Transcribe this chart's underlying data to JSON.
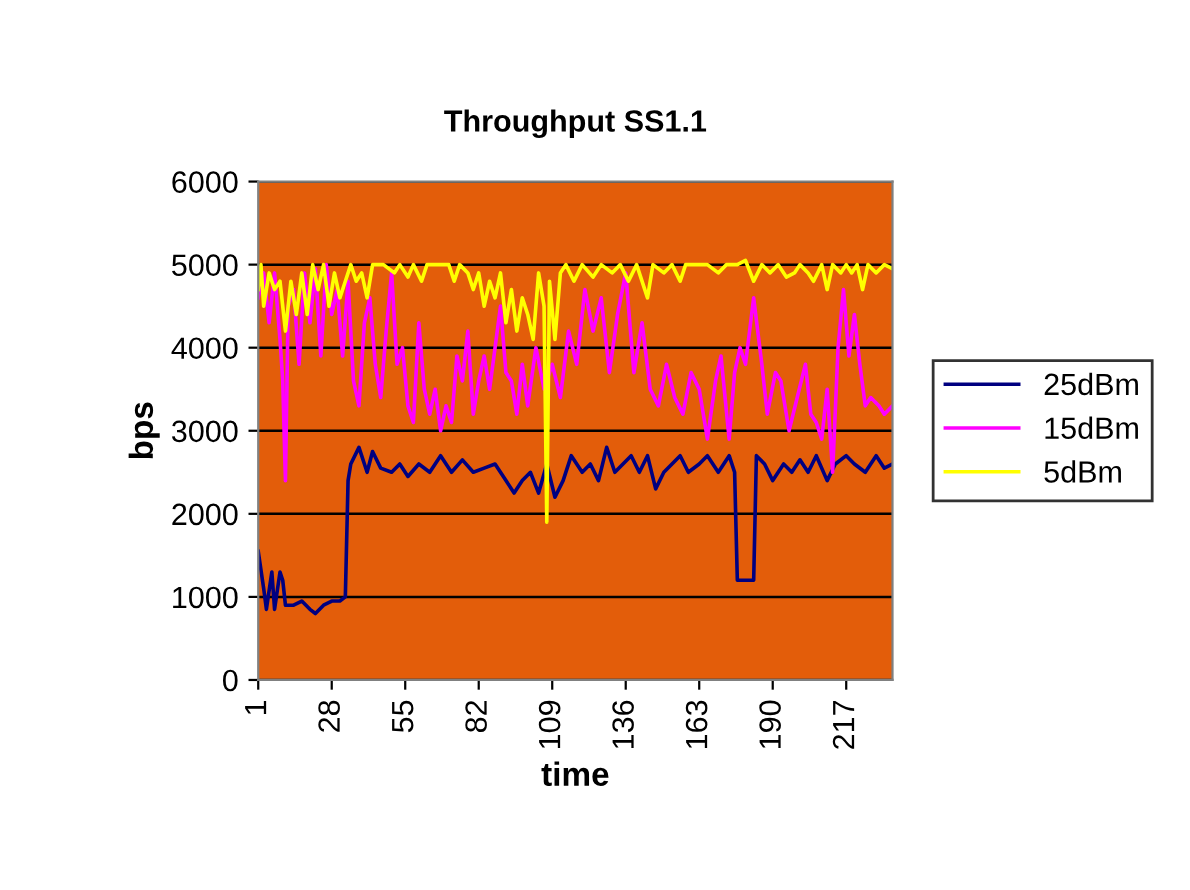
{
  "chart_data": {
    "type": "line",
    "title": "Throughput SS1.1",
    "xlabel": "time",
    "ylabel": "bps",
    "xlim": [
      1,
      234
    ],
    "xticks": [
      1,
      28,
      55,
      82,
      109,
      136,
      163,
      190,
      217
    ],
    "ylim": [
      0,
      6000
    ],
    "yticks": [
      0,
      1000,
      2000,
      3000,
      4000,
      5000,
      6000
    ],
    "grid": "y",
    "legend": "right",
    "marker": "none",
    "line_style": "solid",
    "series": [
      {
        "name": "25dBm",
        "color": "#000080",
        "x": [
          1,
          3,
          4,
          6,
          7,
          9,
          10,
          11,
          14,
          17,
          20,
          22,
          25,
          28,
          31,
          33,
          34,
          35,
          38,
          41,
          43,
          46,
          50,
          53,
          56,
          60,
          64,
          68,
          72,
          76,
          80,
          84,
          88,
          92,
          95,
          98,
          101,
          104,
          107,
          110,
          113,
          116,
          120,
          123,
          126,
          129,
          132,
          135,
          138,
          141,
          144,
          147,
          150,
          153,
          156,
          159,
          163,
          166,
          170,
          174,
          176,
          177,
          183,
          184,
          187,
          190,
          194,
          197,
          200,
          203,
          206,
          210,
          213,
          217,
          220,
          224,
          228,
          231,
          234
        ],
        "values": [
          1550,
          1100,
          850,
          1300,
          850,
          1300,
          1200,
          900,
          900,
          950,
          850,
          800,
          900,
          950,
          950,
          1000,
          2400,
          2600,
          2800,
          2500,
          2750,
          2550,
          2500,
          2600,
          2450,
          2600,
          2500,
          2700,
          2500,
          2650,
          2500,
          2550,
          2600,
          2400,
          2250,
          2400,
          2500,
          2250,
          2600,
          2200,
          2400,
          2700,
          2500,
          2600,
          2400,
          2800,
          2500,
          2600,
          2700,
          2500,
          2700,
          2300,
          2500,
          2600,
          2700,
          2500,
          2600,
          2700,
          2500,
          2700,
          2500,
          1200,
          1200,
          2700,
          2600,
          2400,
          2600,
          2500,
          2650,
          2500,
          2700,
          2400,
          2600,
          2700,
          2600,
          2500,
          2700,
          2550,
          2600
        ]
      },
      {
        "name": "15dBm",
        "color": "#ff00ff",
        "x": [
          1,
          3,
          5,
          7,
          9,
          10,
          11,
          12,
          14,
          16,
          18,
          20,
          22,
          24,
          26,
          28,
          30,
          32,
          34,
          36,
          38,
          40,
          42,
          44,
          46,
          48,
          50,
          52,
          54,
          56,
          58,
          60,
          62,
          64,
          66,
          68,
          70,
          72,
          74,
          76,
          78,
          80,
          82,
          84,
          86,
          88,
          90,
          92,
          94,
          96,
          98,
          100,
          103,
          106,
          109,
          112,
          115,
          118,
          121,
          124,
          127,
          130,
          133,
          136,
          139,
          142,
          145,
          148,
          151,
          154,
          157,
          160,
          163,
          166,
          169,
          171,
          174,
          176,
          178,
          180,
          183,
          186,
          188,
          191,
          193,
          196,
          199,
          202,
          204,
          206,
          208,
          210,
          212,
          214,
          216,
          218,
          220,
          222,
          224,
          226,
          229,
          231,
          234
        ],
        "values": [
          4600,
          4900,
          4300,
          4900,
          4100,
          3600,
          2400,
          4500,
          4700,
          3800,
          4900,
          4300,
          4950,
          3900,
          5000,
          4400,
          4700,
          3900,
          4800,
          3600,
          3300,
          4300,
          4600,
          3800,
          3400,
          4200,
          4900,
          3800,
          4000,
          3300,
          3100,
          4300,
          3500,
          3200,
          3500,
          3000,
          3300,
          3100,
          3900,
          3600,
          4200,
          3200,
          3600,
          3900,
          3500,
          4000,
          4500,
          3700,
          3600,
          3200,
          3800,
          3300,
          4000,
          3500,
          3800,
          3400,
          4200,
          3800,
          4700,
          4200,
          4600,
          3700,
          4400,
          4900,
          3700,
          4300,
          3500,
          3300,
          3800,
          3400,
          3200,
          3700,
          3500,
          2900,
          3600,
          3900,
          2900,
          3700,
          4000,
          3800,
          4600,
          3800,
          3200,
          3700,
          3600,
          3000,
          3400,
          3800,
          3200,
          3100,
          2900,
          3500,
          2500,
          4000,
          4700,
          3900,
          4400,
          3800,
          3300,
          3400,
          3300,
          3200,
          3300
        ]
      },
      {
        "name": "5dBm",
        "color": "#ffff00",
        "x": [
          1,
          2,
          3,
          5,
          7,
          9,
          11,
          13,
          15,
          17,
          19,
          21,
          23,
          25,
          27,
          29,
          31,
          33,
          35,
          37,
          39,
          41,
          43,
          47,
          51,
          53,
          56,
          58,
          61,
          63,
          67,
          71,
          73,
          75,
          78,
          80,
          82,
          84,
          86,
          88,
          90,
          92,
          94,
          96,
          98,
          100,
          102,
          104,
          106,
          107,
          108,
          110,
          112,
          114,
          117,
          120,
          124,
          127,
          131,
          134,
          137,
          140,
          144,
          146,
          150,
          153,
          156,
          158,
          162,
          166,
          170,
          173,
          177,
          180,
          183,
          186,
          189,
          192,
          195,
          198,
          200,
          203,
          205,
          208,
          210,
          212,
          215,
          217,
          219,
          221,
          223,
          225,
          228,
          231,
          234
        ],
        "values": [
          4700,
          5000,
          4500,
          4900,
          4700,
          4800,
          4200,
          4800,
          4400,
          4900,
          4400,
          5000,
          4700,
          5000,
          4500,
          4900,
          4600,
          4800,
          5000,
          4800,
          4900,
          4600,
          5000,
          5000,
          4900,
          5000,
          4850,
          5000,
          4800,
          5000,
          5000,
          5000,
          4800,
          5000,
          4900,
          4700,
          4900,
          4500,
          4800,
          4600,
          4900,
          4300,
          4700,
          4200,
          4600,
          4400,
          4100,
          4900,
          4500,
          1900,
          4800,
          4100,
          4900,
          5000,
          4800,
          5000,
          4850,
          5000,
          4900,
          5000,
          4800,
          5000,
          4600,
          5000,
          4900,
          5000,
          4800,
          5000,
          5000,
          5000,
          4900,
          5000,
          5000,
          5050,
          4800,
          5000,
          4900,
          5000,
          4850,
          4900,
          5000,
          4900,
          4800,
          5000,
          4700,
          5000,
          4900,
          5000,
          4900,
          5000,
          4700,
          5000,
          4900,
          5000,
          4950
        ]
      }
    ]
  }
}
